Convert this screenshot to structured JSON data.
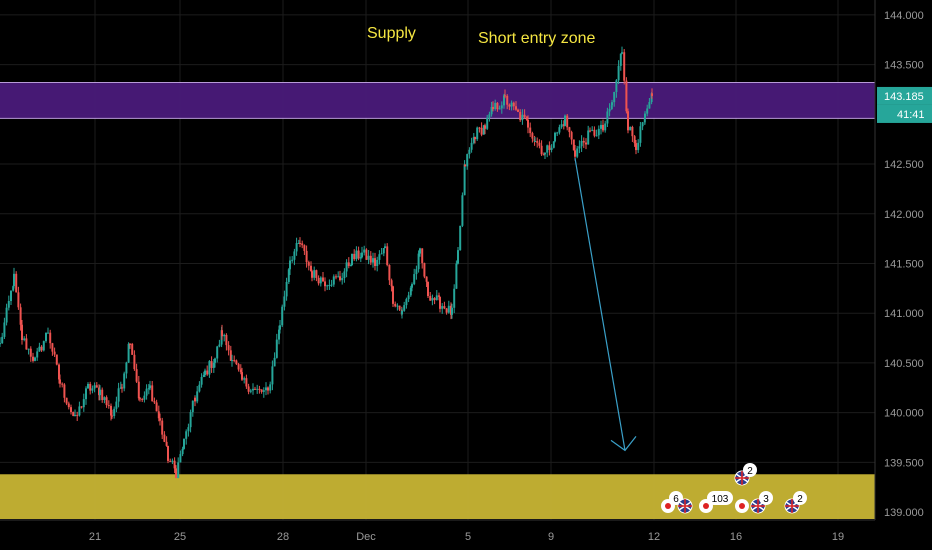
{
  "chart_data": {
    "type": "candlestick",
    "annotations": [
      "Supply",
      "Short entry zone"
    ],
    "y_axis": {
      "ticks": [
        144.0,
        143.5,
        143.0,
        142.5,
        142.0,
        141.5,
        141.0,
        140.5,
        140.0,
        139.5,
        139.0
      ],
      "tick_labels": [
        "144.000",
        "143.500",
        "",
        "142.500",
        "142.000",
        "141.500",
        "141.000",
        "140.500",
        "140.000",
        "139.500",
        "139.000"
      ],
      "range": [
        138.92,
        144.15
      ]
    },
    "x_axis": {
      "ticks": [
        {
          "label": "21",
          "index": 95
        },
        {
          "label": "25",
          "index": 180
        },
        {
          "label": "28",
          "index": 283
        },
        {
          "label": "Dec",
          "index": 366
        },
        {
          "label": "5",
          "index": 468
        },
        {
          "label": "9",
          "index": 551
        },
        {
          "label": "12",
          "index": 654
        },
        {
          "label": "16",
          "index": 736
        },
        {
          "label": "19",
          "index": 838
        }
      ],
      "range": [
        0,
        875
      ]
    },
    "price_label": {
      "value": "143.185",
      "countdown": "41:41",
      "color": "#26a69a"
    },
    "zones": [
      {
        "name": "supply-zone",
        "from": 142.96,
        "to": 143.32,
        "color": "#4a1a7a"
      },
      {
        "name": "demand-zone",
        "from": 138.93,
        "to": 139.38,
        "color": "#c8b534"
      }
    ],
    "projection_arrow": {
      "from": [
        575,
        142.56
      ],
      "to": [
        625,
        139.62
      ],
      "color": "#3aa0c8"
    },
    "price_path": [
      [
        0,
        140.68
      ],
      [
        14,
        141.35
      ],
      [
        22,
        140.75
      ],
      [
        35,
        140.52
      ],
      [
        48,
        140.82
      ],
      [
        60,
        140.3
      ],
      [
        75,
        139.92
      ],
      [
        88,
        140.25
      ],
      [
        100,
        140.22
      ],
      [
        112,
        139.98
      ],
      [
        122,
        140.3
      ],
      [
        130,
        140.75
      ],
      [
        140,
        140.1
      ],
      [
        150,
        140.25
      ],
      [
        160,
        139.9
      ],
      [
        168,
        139.55
      ],
      [
        176,
        139.4
      ],
      [
        184,
        139.7
      ],
      [
        195,
        140.15
      ],
      [
        205,
        140.4
      ],
      [
        215,
        140.55
      ],
      [
        222,
        140.8
      ],
      [
        232,
        140.55
      ],
      [
        242,
        140.32
      ],
      [
        255,
        140.22
      ],
      [
        268,
        140.2
      ],
      [
        280,
        140.9
      ],
      [
        290,
        141.55
      ],
      [
        300,
        141.7
      ],
      [
        312,
        141.4
      ],
      [
        325,
        141.32
      ],
      [
        340,
        141.35
      ],
      [
        352,
        141.55
      ],
      [
        362,
        141.6
      ],
      [
        375,
        141.5
      ],
      [
        385,
        141.65
      ],
      [
        393,
        141.15
      ],
      [
        402,
        141.0
      ],
      [
        412,
        141.3
      ],
      [
        420,
        141.6
      ],
      [
        428,
        141.2
      ],
      [
        440,
        141.1
      ],
      [
        452,
        141.0
      ],
      [
        458,
        141.6
      ],
      [
        465,
        142.5
      ],
      [
        475,
        142.8
      ],
      [
        485,
        142.88
      ],
      [
        493,
        143.05
      ],
      [
        505,
        143.15
      ],
      [
        518,
        143.0
      ],
      [
        528,
        142.9
      ],
      [
        535,
        142.75
      ],
      [
        545,
        142.6
      ],
      [
        555,
        142.78
      ],
      [
        565,
        142.95
      ],
      [
        575,
        142.62
      ],
      [
        590,
        142.8
      ],
      [
        603,
        142.85
      ],
      [
        612,
        143.1
      ],
      [
        622,
        143.65
      ],
      [
        628,
        142.88
      ],
      [
        636,
        142.7
      ],
      [
        645,
        142.95
      ],
      [
        652,
        143.185
      ]
    ],
    "events": [
      {
        "text": "2",
        "index": 742,
        "row": 0,
        "flag": "uk"
      },
      {
        "text": "6",
        "index": 668,
        "row": 1,
        "flag": "jp"
      },
      {
        "text": "",
        "index": 685,
        "row": 1,
        "flag": "uk"
      },
      {
        "text": "103",
        "index": 706,
        "row": 1,
        "flag": "jp"
      },
      {
        "text": "",
        "index": 742,
        "row": 1,
        "flag": "jp"
      },
      {
        "text": "3",
        "index": 758,
        "row": 1,
        "flag": "uk"
      },
      {
        "text": "2",
        "index": 792,
        "row": 1,
        "flag": "uk"
      }
    ],
    "colors": {
      "up": "#26a69a",
      "down": "#ef5350",
      "grid": "#1c1c1c",
      "background": "#000000"
    },
    "grid": true
  }
}
